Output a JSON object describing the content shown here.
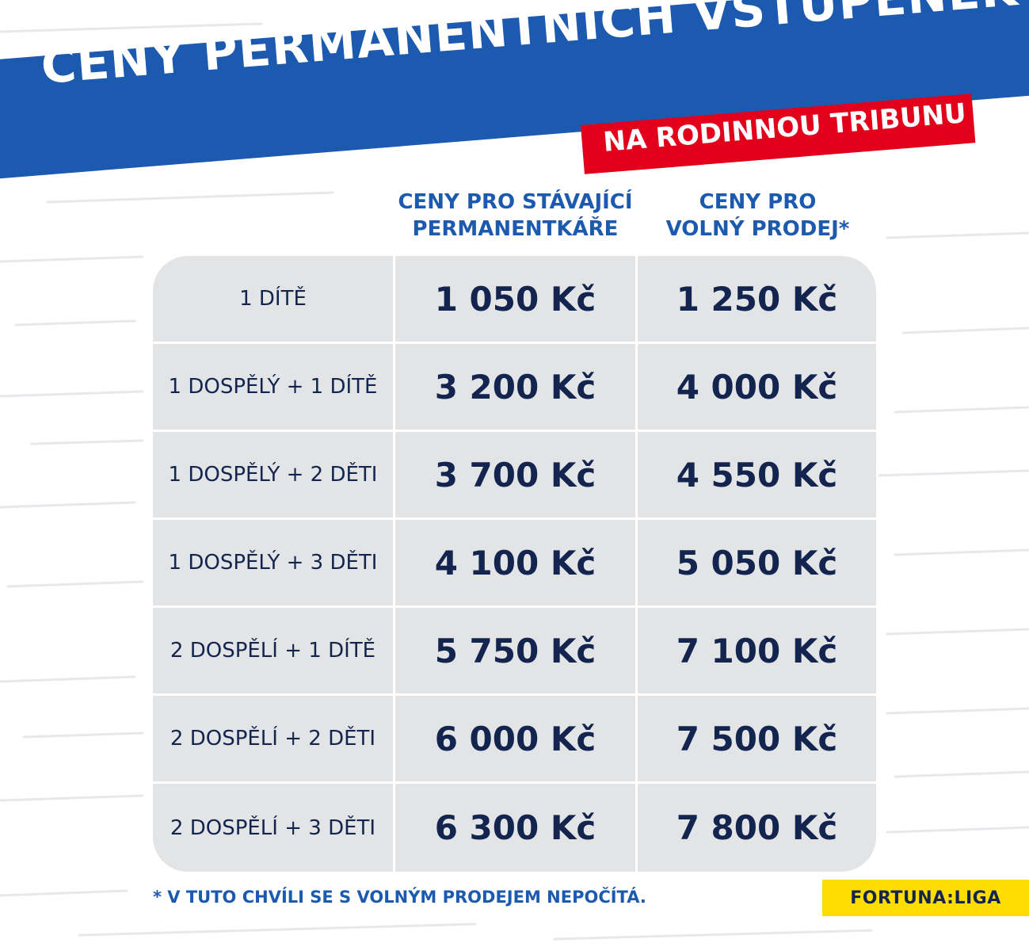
{
  "header": {
    "title": "CENY PERMANENTNÍCH VSTUPENEK",
    "subtitle": "NA RODINNOU TRIBUNU"
  },
  "columns": [
    {
      "label_line1": "CENY PRO STÁVAJÍCÍ",
      "label_line2": "PERMANENTKÁŘE"
    },
    {
      "label_line1": "CENY PRO",
      "label_line2": "VOLNÝ PRODEJ*"
    }
  ],
  "rows": [
    {
      "category": "1 DÍTĚ",
      "current_price": "1 050 Kč",
      "public_price": "1 250 Kč"
    },
    {
      "category": "1 DOSPĚLÝ + 1 DÍTĚ",
      "current_price": "3 200 Kč",
      "public_price": "4 000 Kč"
    },
    {
      "category": "1 DOSPĚLÝ + 2 DĚTI",
      "current_price": "3 700 Kč",
      "public_price": "4 550 Kč"
    },
    {
      "category": "1 DOSPĚLÝ + 3 DĚTI",
      "current_price": "4 100 Kč",
      "public_price": "5 050 Kč"
    },
    {
      "category": "2 DOSPĚLÍ + 1 DÍTĚ",
      "current_price": "5 750 Kč",
      "public_price": "7 100 Kč"
    },
    {
      "category": "2 DOSPĚLÍ + 2 DĚTI",
      "current_price": "6 000 Kč",
      "public_price": "7 500 Kč"
    },
    {
      "category": "2 DOSPĚLÍ + 3 DĚTI",
      "current_price": "6 300 Kč",
      "public_price": "7 800 Kč"
    }
  ],
  "footnote": "* V TUTO CHVÍLI SE S VOLNÝM PRODEJEM NEPOČÍTÁ.",
  "brand": "FORTUNA:LIGA",
  "colors": {
    "banner_blue": "#1c5ab0",
    "accent_red": "#e3001b",
    "navy_text": "#13254f",
    "cell_gray": "#e3e4e6",
    "brand_yellow": "#ffdd00"
  }
}
